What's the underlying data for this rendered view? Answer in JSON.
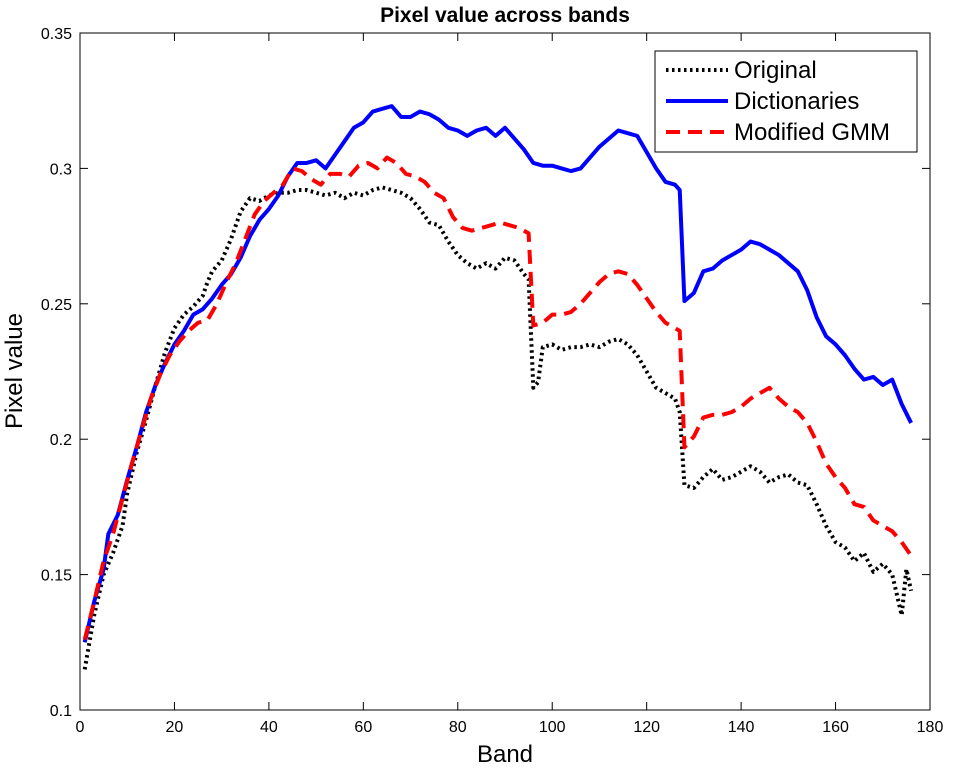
{
  "chart_data": {
    "type": "line",
    "title": "Pixel value across bands",
    "xlabel": "Band",
    "ylabel": "Pixel value",
    "xlim": [
      0,
      180
    ],
    "ylim": [
      0.1,
      0.35
    ],
    "xticks": [
      0,
      20,
      40,
      60,
      80,
      100,
      120,
      140,
      160,
      180
    ],
    "xtick_labels": [
      "0",
      "20",
      "40",
      "60",
      "80",
      "100",
      "120",
      "140",
      "160",
      "180"
    ],
    "yticks": [
      0.1,
      0.15,
      0.2,
      0.25,
      0.3,
      0.35
    ],
    "ytick_labels": [
      "0.1",
      "0.15",
      "0.2",
      "0.25",
      "0.3",
      "0.35"
    ],
    "grid": false,
    "legend_position": "top-right",
    "series": [
      {
        "name": "Original",
        "color": "#000000",
        "style": "dotted",
        "points": [
          [
            1,
            0.115
          ],
          [
            3,
            0.135
          ],
          [
            5,
            0.15
          ],
          [
            7,
            0.158
          ],
          [
            9,
            0.168
          ],
          [
            10,
            0.18
          ],
          [
            12,
            0.195
          ],
          [
            14,
            0.207
          ],
          [
            16,
            0.22
          ],
          [
            18,
            0.232
          ],
          [
            20,
            0.241
          ],
          [
            22,
            0.246
          ],
          [
            24,
            0.249
          ],
          [
            26,
            0.253
          ],
          [
            27,
            0.258
          ],
          [
            28,
            0.262
          ],
          [
            30,
            0.266
          ],
          [
            32,
            0.274
          ],
          [
            34,
            0.284
          ],
          [
            36,
            0.289
          ],
          [
            38,
            0.288
          ],
          [
            40,
            0.29
          ],
          [
            42,
            0.291
          ],
          [
            44,
            0.291
          ],
          [
            46,
            0.292
          ],
          [
            48,
            0.292
          ],
          [
            50,
            0.291
          ],
          [
            52,
            0.29
          ],
          [
            54,
            0.291
          ],
          [
            56,
            0.289
          ],
          [
            58,
            0.291
          ],
          [
            60,
            0.29
          ],
          [
            62,
            0.292
          ],
          [
            64,
            0.293
          ],
          [
            66,
            0.292
          ],
          [
            68,
            0.291
          ],
          [
            70,
            0.289
          ],
          [
            72,
            0.285
          ],
          [
            74,
            0.28
          ],
          [
            76,
            0.279
          ],
          [
            78,
            0.273
          ],
          [
            80,
            0.268
          ],
          [
            82,
            0.265
          ],
          [
            84,
            0.263
          ],
          [
            86,
            0.265
          ],
          [
            88,
            0.263
          ],
          [
            90,
            0.267
          ],
          [
            92,
            0.266
          ],
          [
            94,
            0.261
          ],
          [
            95,
            0.259
          ],
          [
            96,
            0.219
          ],
          [
            97,
            0.221
          ],
          [
            98,
            0.234
          ],
          [
            100,
            0.235
          ],
          [
            102,
            0.233
          ],
          [
            104,
            0.234
          ],
          [
            106,
            0.234
          ],
          [
            108,
            0.235
          ],
          [
            110,
            0.234
          ],
          [
            112,
            0.236
          ],
          [
            114,
            0.237
          ],
          [
            116,
            0.235
          ],
          [
            118,
            0.231
          ],
          [
            120,
            0.225
          ],
          [
            122,
            0.219
          ],
          [
            124,
            0.217
          ],
          [
            126,
            0.215
          ],
          [
            127,
            0.21
          ],
          [
            128,
            0.183
          ],
          [
            130,
            0.182
          ],
          [
            132,
            0.186
          ],
          [
            134,
            0.189
          ],
          [
            136,
            0.185
          ],
          [
            138,
            0.186
          ],
          [
            140,
            0.188
          ],
          [
            142,
            0.19
          ],
          [
            144,
            0.188
          ],
          [
            146,
            0.184
          ],
          [
            148,
            0.186
          ],
          [
            150,
            0.187
          ],
          [
            152,
            0.184
          ],
          [
            154,
            0.183
          ],
          [
            156,
            0.176
          ],
          [
            158,
            0.168
          ],
          [
            160,
            0.162
          ],
          [
            162,
            0.16
          ],
          [
            164,
            0.155
          ],
          [
            166,
            0.158
          ],
          [
            168,
            0.151
          ],
          [
            170,
            0.154
          ],
          [
            172,
            0.15
          ],
          [
            174,
            0.135
          ],
          [
            175,
            0.152
          ],
          [
            176,
            0.144
          ]
        ]
      },
      {
        "name": "Dictionaries",
        "color": "#0000ff",
        "style": "solid",
        "points": [
          [
            1,
            0.125
          ],
          [
            3,
            0.14
          ],
          [
            5,
            0.152
          ],
          [
            6,
            0.165
          ],
          [
            8,
            0.172
          ],
          [
            10,
            0.185
          ],
          [
            12,
            0.197
          ],
          [
            14,
            0.21
          ],
          [
            16,
            0.22
          ],
          [
            18,
            0.228
          ],
          [
            20,
            0.235
          ],
          [
            22,
            0.24
          ],
          [
            24,
            0.246
          ],
          [
            26,
            0.248
          ],
          [
            28,
            0.252
          ],
          [
            30,
            0.257
          ],
          [
            32,
            0.261
          ],
          [
            34,
            0.267
          ],
          [
            36,
            0.275
          ],
          [
            38,
            0.281
          ],
          [
            40,
            0.285
          ],
          [
            42,
            0.29
          ],
          [
            44,
            0.297
          ],
          [
            46,
            0.302
          ],
          [
            48,
            0.302
          ],
          [
            50,
            0.303
          ],
          [
            52,
            0.3
          ],
          [
            54,
            0.305
          ],
          [
            56,
            0.31
          ],
          [
            58,
            0.315
          ],
          [
            60,
            0.317
          ],
          [
            62,
            0.321
          ],
          [
            64,
            0.322
          ],
          [
            66,
            0.323
          ],
          [
            68,
            0.319
          ],
          [
            70,
            0.319
          ],
          [
            72,
            0.321
          ],
          [
            74,
            0.32
          ],
          [
            76,
            0.318
          ],
          [
            78,
            0.315
          ],
          [
            80,
            0.314
          ],
          [
            82,
            0.312
          ],
          [
            84,
            0.314
          ],
          [
            86,
            0.315
          ],
          [
            88,
            0.312
          ],
          [
            90,
            0.315
          ],
          [
            92,
            0.311
          ],
          [
            94,
            0.307
          ],
          [
            96,
            0.302
          ],
          [
            98,
            0.301
          ],
          [
            100,
            0.301
          ],
          [
            102,
            0.3
          ],
          [
            104,
            0.299
          ],
          [
            106,
            0.3
          ],
          [
            108,
            0.304
          ],
          [
            110,
            0.308
          ],
          [
            112,
            0.311
          ],
          [
            114,
            0.314
          ],
          [
            116,
            0.313
          ],
          [
            118,
            0.312
          ],
          [
            120,
            0.306
          ],
          [
            122,
            0.3
          ],
          [
            124,
            0.295
          ],
          [
            126,
            0.294
          ],
          [
            127,
            0.292
          ],
          [
            128,
            0.251
          ],
          [
            130,
            0.254
          ],
          [
            132,
            0.262
          ],
          [
            134,
            0.263
          ],
          [
            136,
            0.266
          ],
          [
            138,
            0.268
          ],
          [
            140,
            0.27
          ],
          [
            142,
            0.273
          ],
          [
            144,
            0.272
          ],
          [
            146,
            0.27
          ],
          [
            148,
            0.268
          ],
          [
            150,
            0.265
          ],
          [
            152,
            0.262
          ],
          [
            154,
            0.255
          ],
          [
            156,
            0.245
          ],
          [
            158,
            0.238
          ],
          [
            160,
            0.235
          ],
          [
            162,
            0.231
          ],
          [
            164,
            0.226
          ],
          [
            166,
            0.222
          ],
          [
            168,
            0.223
          ],
          [
            170,
            0.22
          ],
          [
            172,
            0.222
          ],
          [
            174,
            0.213
          ],
          [
            176,
            0.206
          ]
        ]
      },
      {
        "name": "Modified GMM",
        "color": "#ff0000",
        "style": "dashed",
        "points": [
          [
            1,
            0.126
          ],
          [
            3,
            0.14
          ],
          [
            5,
            0.155
          ],
          [
            7,
            0.165
          ],
          [
            9,
            0.178
          ],
          [
            11,
            0.191
          ],
          [
            13,
            0.203
          ],
          [
            15,
            0.215
          ],
          [
            17,
            0.224
          ],
          [
            19,
            0.231
          ],
          [
            21,
            0.236
          ],
          [
            23,
            0.24
          ],
          [
            25,
            0.243
          ],
          [
            27,
            0.244
          ],
          [
            29,
            0.25
          ],
          [
            31,
            0.258
          ],
          [
            33,
            0.265
          ],
          [
            35,
            0.274
          ],
          [
            37,
            0.283
          ],
          [
            39,
            0.288
          ],
          [
            41,
            0.291
          ],
          [
            43,
            0.294
          ],
          [
            45,
            0.3
          ],
          [
            47,
            0.299
          ],
          [
            49,
            0.296
          ],
          [
            51,
            0.294
          ],
          [
            53,
            0.298
          ],
          [
            55,
            0.298
          ],
          [
            57,
            0.297
          ],
          [
            59,
            0.301
          ],
          [
            61,
            0.302
          ],
          [
            63,
            0.3
          ],
          [
            65,
            0.304
          ],
          [
            67,
            0.302
          ],
          [
            69,
            0.298
          ],
          [
            71,
            0.297
          ],
          [
            73,
            0.295
          ],
          [
            75,
            0.291
          ],
          [
            77,
            0.289
          ],
          [
            79,
            0.282
          ],
          [
            81,
            0.278
          ],
          [
            83,
            0.277
          ],
          [
            85,
            0.278
          ],
          [
            87,
            0.279
          ],
          [
            89,
            0.28
          ],
          [
            91,
            0.279
          ],
          [
            93,
            0.278
          ],
          [
            95,
            0.276
          ],
          [
            96,
            0.242
          ],
          [
            98,
            0.243
          ],
          [
            100,
            0.246
          ],
          [
            102,
            0.246
          ],
          [
            104,
            0.247
          ],
          [
            106,
            0.25
          ],
          [
            108,
            0.254
          ],
          [
            110,
            0.258
          ],
          [
            112,
            0.261
          ],
          [
            114,
            0.262
          ],
          [
            116,
            0.261
          ],
          [
            118,
            0.257
          ],
          [
            120,
            0.252
          ],
          [
            122,
            0.247
          ],
          [
            124,
            0.243
          ],
          [
            126,
            0.241
          ],
          [
            127,
            0.24
          ],
          [
            128,
            0.197
          ],
          [
            130,
            0.201
          ],
          [
            132,
            0.208
          ],
          [
            134,
            0.209
          ],
          [
            136,
            0.209
          ],
          [
            138,
            0.21
          ],
          [
            140,
            0.212
          ],
          [
            142,
            0.215
          ],
          [
            144,
            0.217
          ],
          [
            146,
            0.219
          ],
          [
            148,
            0.215
          ],
          [
            150,
            0.212
          ],
          [
            152,
            0.21
          ],
          [
            154,
            0.206
          ],
          [
            156,
            0.199
          ],
          [
            158,
            0.191
          ],
          [
            160,
            0.186
          ],
          [
            162,
            0.182
          ],
          [
            164,
            0.176
          ],
          [
            166,
            0.175
          ],
          [
            168,
            0.17
          ],
          [
            170,
            0.168
          ],
          [
            172,
            0.166
          ],
          [
            174,
            0.162
          ],
          [
            176,
            0.157
          ]
        ]
      }
    ]
  }
}
